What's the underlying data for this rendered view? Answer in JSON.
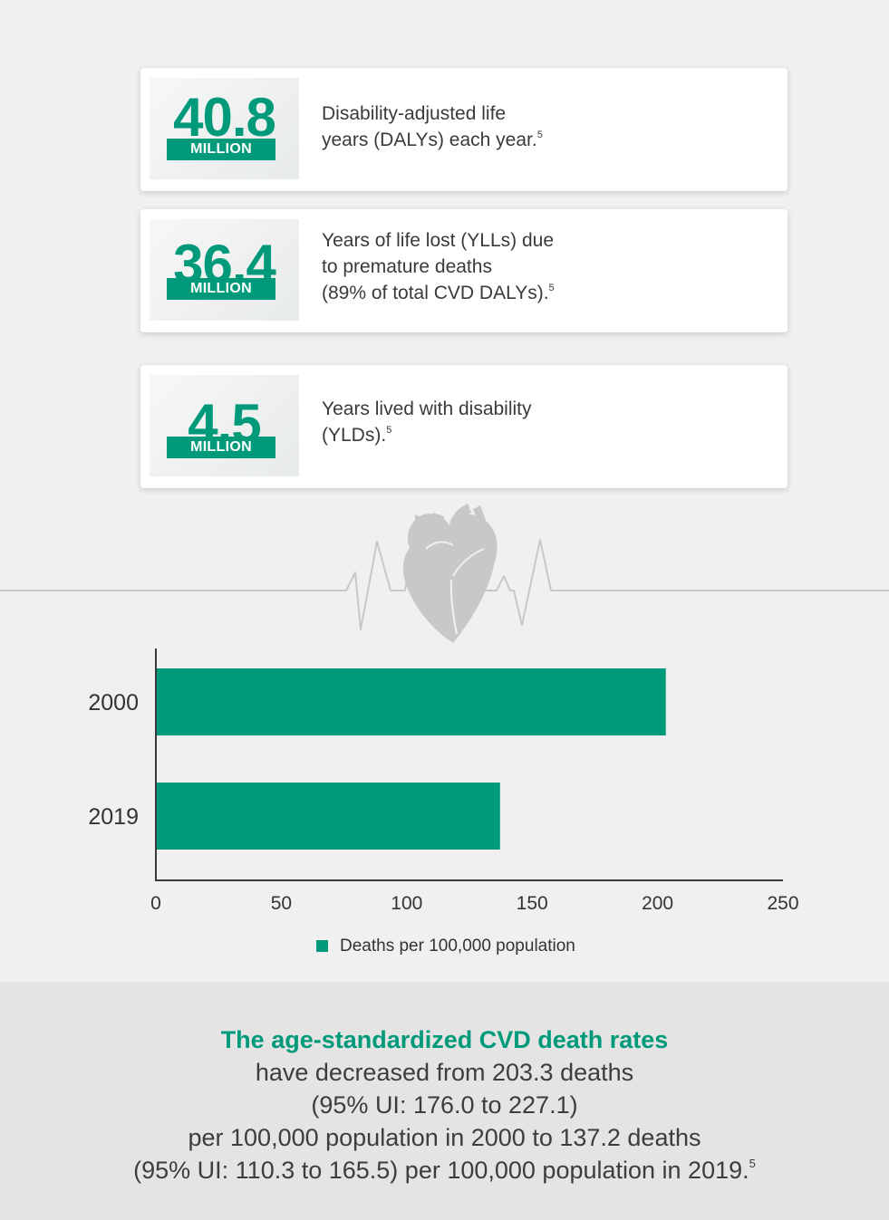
{
  "stats": [
    {
      "value": "40.8",
      "unit": "MILLION",
      "text_lines": [
        "Disability-adjusted life",
        "years (DALYs) each year."
      ],
      "ref": "5"
    },
    {
      "value": "36.4",
      "unit": "MILLION",
      "text_lines": [
        "Years of life lost (YLLs) due",
        "to premature deaths",
        "(89% of total CVD DALYs)."
      ],
      "ref": "5"
    },
    {
      "value": "4.5",
      "unit": "MILLION",
      "text_lines": [
        "Years lived with disability",
        "(YLDs)."
      ],
      "ref": "5"
    }
  ],
  "colors": {
    "accent": "#009a7b",
    "icon": "#c8c8c8",
    "axis": "#3a3a3a"
  },
  "icons": {
    "divider": "heart-icon",
    "pulse": "heartbeat-line-icon"
  },
  "chart_data": {
    "type": "bar",
    "orientation": "horizontal",
    "categories": [
      "2000",
      "2019"
    ],
    "series": [
      {
        "name": "Deaths per 100,000 population",
        "values": [
          203.3,
          137.2
        ]
      }
    ],
    "xlim": [
      0,
      250
    ],
    "xticks": [
      "0",
      "50",
      "100",
      "150",
      "200",
      "250"
    ],
    "legend": "bottom-center",
    "grid": false
  },
  "footer": {
    "headline": "The age-standardized CVD death rates",
    "lines": [
      "have decreased from 203.3 deaths",
      "(95% UI: 176.0 to 227.1)",
      "per 100,000 population in 2000 to 137.2 deaths",
      "(95% UI: 110.3 to 165.5) per 100,000 population in 2019."
    ],
    "ref": "5"
  }
}
